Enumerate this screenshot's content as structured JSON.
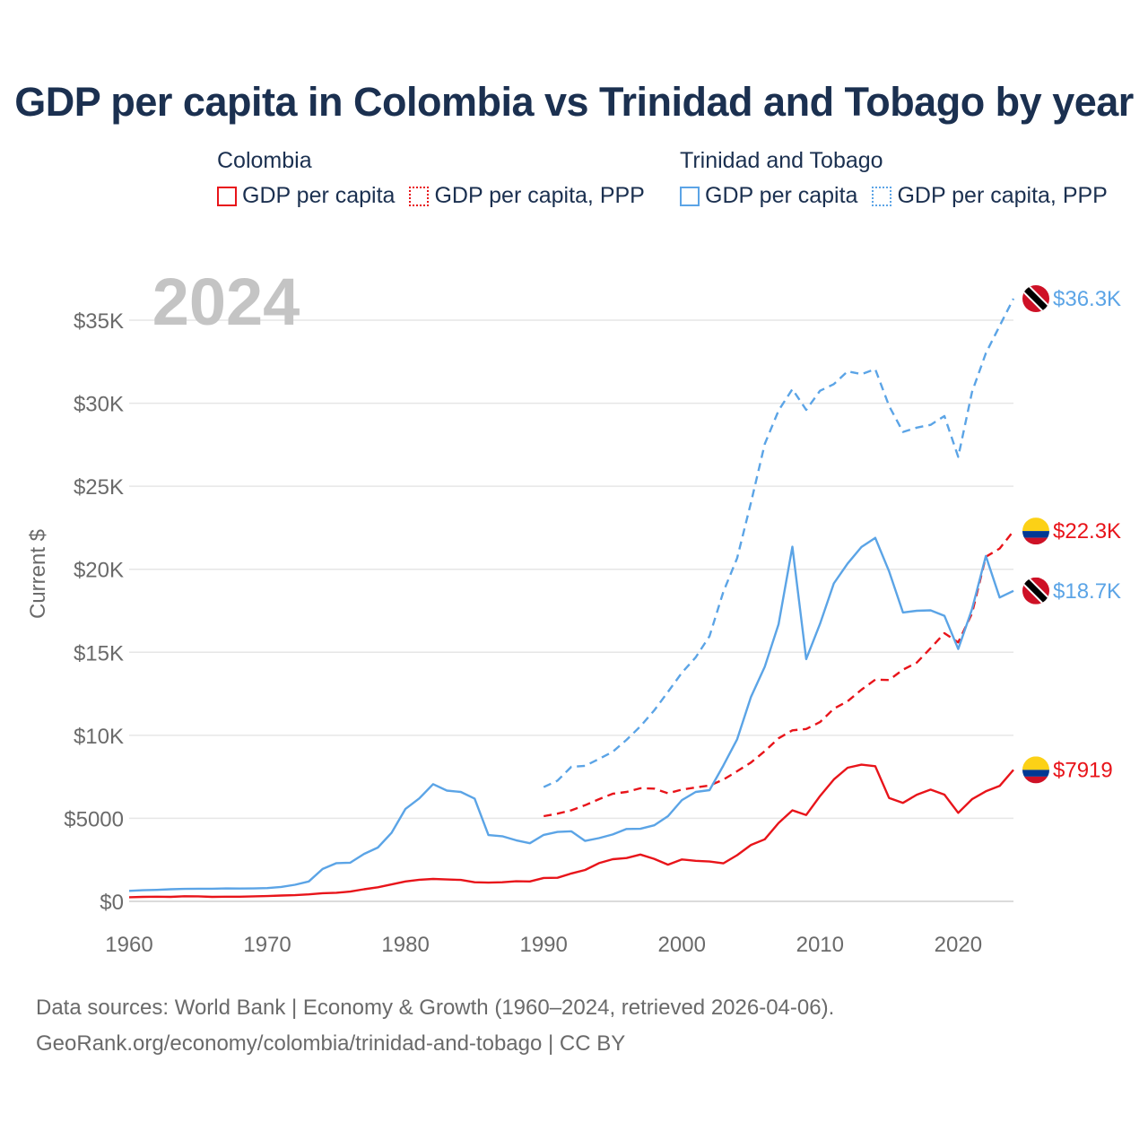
{
  "title": "GDP per capita in Colombia vs Trinidad and Tobago by year",
  "legend": {
    "groups": [
      {
        "name": "Colombia",
        "items": [
          "GDP per capita",
          "GDP per capita, PPP"
        ]
      },
      {
        "name": "Trinidad and Tobago",
        "items": [
          "GDP per capita",
          "GDP per capita, PPP"
        ]
      }
    ]
  },
  "source": {
    "line1": "Data sources: World Bank | Economy & Growth (1960–2024, retrieved 2026-04-06).",
    "line2": "GeoRank.org/economy/colombia/trinidad-and-tobago | CC BY"
  },
  "chart_data": {
    "type": "line",
    "title": "GDP per capita in Colombia vs Trinidad and Tobago by year",
    "watermark_year": "2024",
    "xlabel": "",
    "ylabel": "Current $",
    "xlim": [
      1960,
      2024
    ],
    "ylim": [
      0,
      37000
    ],
    "x_ticks": [
      1960,
      1970,
      1980,
      1990,
      2000,
      2010,
      2020
    ],
    "y_ticks": [
      0,
      5000,
      10000,
      15000,
      20000,
      25000,
      30000,
      35000
    ],
    "y_tick_labels": [
      "$0",
      "$5000",
      "$10K",
      "$15K",
      "$20K",
      "$25K",
      "$30K",
      "$35K"
    ],
    "colors": {
      "colombia": "#e8141a",
      "trinidad": "#5ba4e6",
      "grid": "#e6e6e6",
      "axis_text": "#6a6a6a"
    },
    "series": [
      {
        "name": "Colombia GDP per capita",
        "country": "colombia",
        "style": "solid",
        "start_year": 1960,
        "end_label": "$7919",
        "values": [
          250,
          270,
          280,
          270,
          310,
          300,
          270,
          280,
          280,
          300,
          320,
          350,
          370,
          420,
          490,
          520,
          590,
          730,
          850,
          1020,
          1200,
          1300,
          1350,
          1320,
          1290,
          1150,
          1130,
          1150,
          1210,
          1200,
          1410,
          1420,
          1680,
          1890,
          2300,
          2540,
          2610,
          2820,
          2560,
          2210,
          2520,
          2440,
          2400,
          2290,
          2780,
          3400,
          3740,
          4720,
          5480,
          5200,
          6340,
          7340,
          8050,
          8230,
          8140,
          6230,
          5930,
          6420,
          6730,
          6430,
          5330,
          6150,
          6630,
          6950,
          7919
        ]
      },
      {
        "name": "Colombia GDP per capita, PPP",
        "country": "colombia",
        "style": "dash",
        "start_year": 1990,
        "end_label": "$22.3K",
        "values": [
          5130,
          5280,
          5480,
          5790,
          6150,
          6480,
          6590,
          6810,
          6790,
          6510,
          6730,
          6860,
          6980,
          7330,
          7840,
          8360,
          9050,
          9820,
          10300,
          10380,
          10800,
          11600,
          12050,
          12750,
          13350,
          13330,
          13950,
          14380,
          15250,
          16150,
          15600,
          17350,
          20750,
          21250,
          22300
        ]
      },
      {
        "name": "Trinidad and Tobago GDP per capita",
        "country": "trinidad",
        "style": "solid",
        "start_year": 1960,
        "end_label": "$18.7K",
        "values": [
          630,
          670,
          690,
          730,
          750,
          760,
          760,
          780,
          770,
          780,
          800,
          870,
          1000,
          1200,
          1950,
          2300,
          2330,
          2860,
          3240,
          4140,
          5570,
          6200,
          7060,
          6670,
          6590,
          6190,
          3990,
          3920,
          3680,
          3500,
          4000,
          4180,
          4220,
          3640,
          3810,
          4030,
          4360,
          4370,
          4580,
          5130,
          6100,
          6590,
          6700,
          8180,
          9760,
          12310,
          14130,
          16690,
          21360,
          14590,
          16710,
          19150,
          20350,
          21340,
          21890,
          19880,
          17400,
          17500,
          17530,
          17200,
          15200,
          17600,
          20800,
          18300,
          18700
        ]
      },
      {
        "name": "Trinidad and Tobago GDP per capita, PPP",
        "country": "trinidad",
        "style": "dash",
        "start_year": 1990,
        "end_label": "$36.3K",
        "values": [
          6880,
          7270,
          8100,
          8160,
          8570,
          9010,
          9730,
          10540,
          11500,
          12620,
          13770,
          14700,
          15970,
          18640,
          20670,
          24010,
          27550,
          29560,
          30850,
          29600,
          30750,
          31150,
          31920,
          31750,
          32050,
          29840,
          28270,
          28530,
          28700,
          29230,
          26770,
          30680,
          33010,
          34660,
          36300
        ]
      }
    ]
  }
}
